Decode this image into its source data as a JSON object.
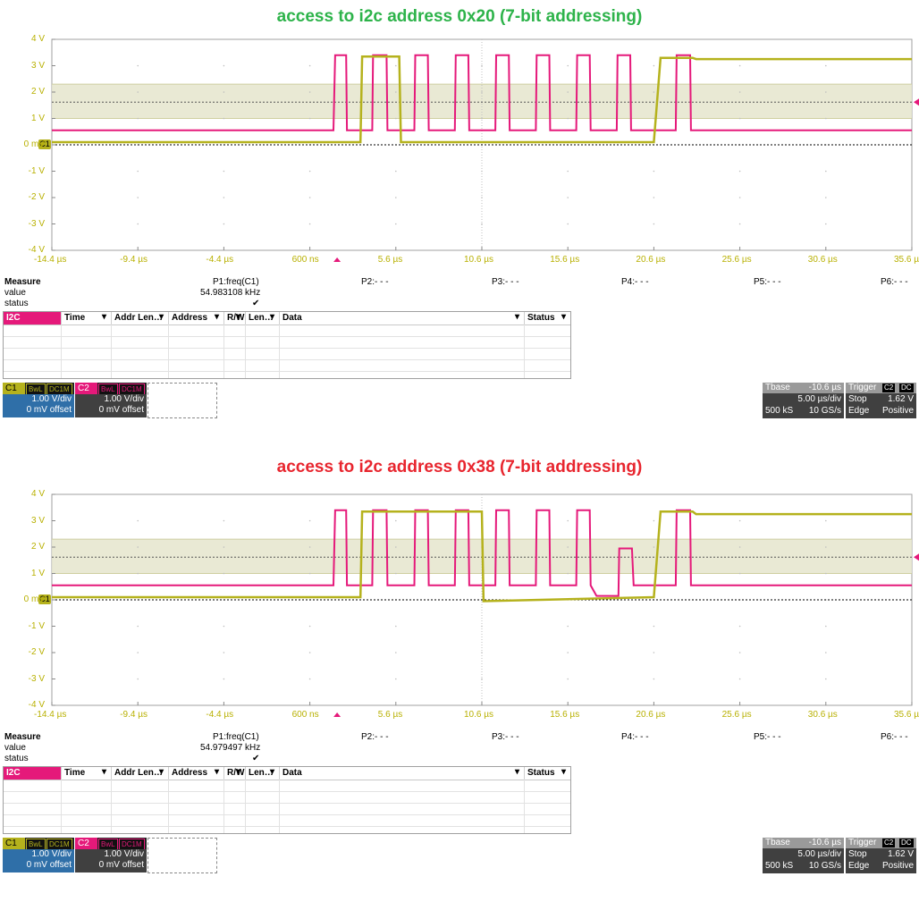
{
  "colors": {
    "c1": "#b5b21d",
    "c2": "#e5197a",
    "title1": "#2db34a",
    "title2": "#e8252e",
    "axis": "#b8b000",
    "grid": "#bdbdbd"
  },
  "screens": [
    {
      "title": "access to i2c address 0x20 (7-bit addressing)",
      "y_labels": [
        "4 V",
        "3 V",
        "2 V",
        "1 V",
        "0 mV",
        "-1 V",
        "-2 V",
        "-3 V",
        "-4 V"
      ],
      "x_labels": [
        "-14.4 µs",
        "-9.4 µs",
        "-4.4 µs",
        "600 ns",
        "5.6 µs",
        "10.6 µs",
        "15.6 µs",
        "20.6 µs",
        "25.6 µs",
        "30.6 µs",
        "35.6 µs"
      ],
      "c1_marker": "C1",
      "measure": {
        "label": "Measure",
        "p1": "P1:freq(C1)",
        "p2": "P2:- - -",
        "p3": "P3:- - -",
        "p4": "P4:- - -",
        "p5": "P5:- - -",
        "p6": "P6:- - -",
        "value_label": "value",
        "value": "54.983108 kHz",
        "status_label": "status",
        "status": "✔"
      },
      "table_headers": [
        "I2C",
        "Time",
        "Addr Len…",
        "Address",
        "R/W",
        "Len…",
        "Data",
        "Status"
      ],
      "channels": [
        {
          "name": "C1",
          "bwl": "BwL",
          "coupling": "DC1M",
          "scale": "1.00 V/div",
          "offset": "0 mV offset"
        },
        {
          "name": "C2",
          "bwl": "BwL",
          "coupling": "DC1M",
          "scale": "1.00 V/div",
          "offset": "0 mV offset"
        }
      ],
      "timebase": {
        "label": "Tbase",
        "value": "-10.6 µs",
        "div": "5.00 µs/div",
        "samples": "500 kS",
        "rate": "10 GS/s"
      },
      "trigger": {
        "label": "Trigger",
        "src1": "C2",
        "src2": "DC",
        "mode": "Stop",
        "level": "1.62 V",
        "type": "Edge",
        "slope": "Positive"
      },
      "sda": [
        [
          0,
          0.1
        ],
        [
          366,
          0.1
        ],
        [
          368,
          3.35
        ],
        [
          412,
          3.35
        ],
        [
          414,
          0.1
        ],
        [
          714,
          0.1
        ],
        [
          722,
          3.3
        ],
        [
          760,
          3.3
        ],
        [
          764,
          3.25
        ],
        [
          1020,
          3.25
        ]
      ],
      "scl": [
        [
          0,
          0.55
        ],
        [
          334,
          0.55
        ],
        [
          336,
          3.4
        ],
        [
          349,
          3.4
        ],
        [
          350,
          0.55
        ],
        [
          380,
          0.55
        ],
        [
          381,
          3.4
        ],
        [
          397,
          3.4
        ],
        [
          398,
          0.55
        ],
        [
          430,
          0.55
        ],
        [
          431,
          3.4
        ],
        [
          446,
          3.4
        ],
        [
          447,
          0.55
        ],
        [
          478,
          0.55
        ],
        [
          479,
          3.4
        ],
        [
          494,
          3.4
        ],
        [
          495,
          0.55
        ],
        [
          526,
          0.55
        ],
        [
          527,
          3.4
        ],
        [
          542,
          3.4
        ],
        [
          543,
          0.55
        ],
        [
          574,
          0.55
        ],
        [
          575,
          3.4
        ],
        [
          590,
          3.4
        ],
        [
          591,
          0.55
        ],
        [
          622,
          0.55
        ],
        [
          623,
          3.4
        ],
        [
          638,
          3.4
        ],
        [
          639,
          0.55
        ],
        [
          670,
          0.55
        ],
        [
          671,
          3.4
        ],
        [
          686,
          3.4
        ],
        [
          687,
          0.55
        ],
        [
          740,
          0.55
        ],
        [
          741,
          3.4
        ],
        [
          757,
          3.4
        ],
        [
          758,
          0.55
        ],
        [
          1020,
          0.55
        ]
      ]
    },
    {
      "title": "access to i2c address 0x38 (7-bit addressing)",
      "y_labels": [
        "4 V",
        "3 V",
        "2 V",
        "1 V",
        "0 mV",
        "-1 V",
        "-2 V",
        "-3 V",
        "-4 V"
      ],
      "x_labels": [
        "-14.4 µs",
        "-9.4 µs",
        "-4.4 µs",
        "600 ns",
        "5.6 µs",
        "10.6 µs",
        "15.6 µs",
        "20.6 µs",
        "25.6 µs",
        "30.6 µs",
        "35.6 µs"
      ],
      "c1_marker": "C1",
      "measure": {
        "label": "Measure",
        "p1": "P1:freq(C1)",
        "p2": "P2:- - -",
        "p3": "P3:- - -",
        "p4": "P4:- - -",
        "p5": "P5:- - -",
        "p6": "P6:- - -",
        "value_label": "value",
        "value": "54.979497 kHz",
        "status_label": "status",
        "status": "✔"
      },
      "table_headers": [
        "I2C",
        "Time",
        "Addr Len…",
        "Address",
        "R/W",
        "Len…",
        "Data",
        "Status"
      ],
      "channels": [
        {
          "name": "C1",
          "bwl": "BwL",
          "coupling": "DC1M",
          "scale": "1.00 V/div",
          "offset": "0 mV offset"
        },
        {
          "name": "C2",
          "bwl": "BwL",
          "coupling": "DC1M",
          "scale": "1.00 V/div",
          "offset": "0 mV offset"
        }
      ],
      "timebase": {
        "label": "Tbase",
        "value": "-10.6 µs",
        "div": "5.00 µs/div",
        "samples": "500 kS",
        "rate": "10 GS/s"
      },
      "trigger": {
        "label": "Trigger",
        "src1": "C2",
        "src2": "DC",
        "mode": "Stop",
        "level": "1.62 V",
        "type": "Edge",
        "slope": "Positive"
      },
      "sda": [
        [
          0,
          0.1
        ],
        [
          366,
          0.1
        ],
        [
          368,
          3.35
        ],
        [
          510,
          3.35
        ],
        [
          512,
          -0.05
        ],
        [
          714,
          0.1
        ],
        [
          722,
          3.35
        ],
        [
          760,
          3.35
        ],
        [
          764,
          3.25
        ],
        [
          1020,
          3.25
        ]
      ],
      "scl": [
        [
          0,
          0.55
        ],
        [
          334,
          0.55
        ],
        [
          336,
          3.4
        ],
        [
          349,
          3.4
        ],
        [
          350,
          0.55
        ],
        [
          380,
          0.55
        ],
        [
          381,
          3.4
        ],
        [
          397,
          3.4
        ],
        [
          398,
          0.55
        ],
        [
          430,
          0.55
        ],
        [
          431,
          3.4
        ],
        [
          446,
          3.4
        ],
        [
          447,
          0.55
        ],
        [
          478,
          0.55
        ],
        [
          479,
          3.4
        ],
        [
          494,
          3.4
        ],
        [
          495,
          0.55
        ],
        [
          526,
          0.55
        ],
        [
          527,
          3.4
        ],
        [
          542,
          3.4
        ],
        [
          543,
          0.55
        ],
        [
          574,
          0.55
        ],
        [
          575,
          3.4
        ],
        [
          590,
          3.4
        ],
        [
          591,
          0.55
        ],
        [
          622,
          0.55
        ],
        [
          623,
          3.4
        ],
        [
          638,
          3.4
        ],
        [
          639,
          0.55
        ],
        [
          646,
          0.15
        ],
        [
          672,
          0.15
        ],
        [
          673,
          1.95
        ],
        [
          688,
          1.95
        ],
        [
          690,
          0.55
        ],
        [
          740,
          0.55
        ],
        [
          741,
          3.4
        ],
        [
          757,
          3.4
        ],
        [
          758,
          0.55
        ],
        [
          1020,
          0.55
        ]
      ]
    }
  ]
}
